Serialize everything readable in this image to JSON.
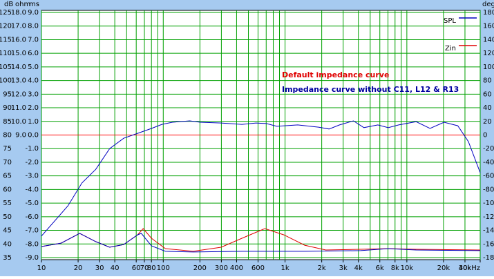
{
  "chart_data": {
    "type": "line",
    "xlabel_unit": "Hz",
    "log_x": true,
    "grid": true,
    "grid_color": "#00a000",
    "background": "#a6caf0",
    "plot_background": "#ffffff",
    "xlim": [
      10,
      40000
    ],
    "xticks": [
      10,
      20,
      30,
      40,
      60,
      70,
      80,
      100,
      200,
      300,
      400,
      600,
      {
        "value": 1000,
        "label": "1k"
      },
      {
        "value": 2000,
        "label": "2k"
      },
      {
        "value": 3000,
        "label": "3k"
      },
      {
        "value": 4000,
        "label": "4k"
      },
      {
        "value": 6000,
        "label": "6k"
      },
      {
        "value": 8000,
        "label": "8k"
      },
      {
        "value": 10000,
        "label": "10k"
      },
      {
        "value": 20000,
        "label": "20k"
      },
      {
        "value": 30000,
        "label": "30k"
      },
      {
        "value": 40000,
        "label": "40kHz"
      }
    ],
    "xgrid": [
      10,
      20,
      30,
      40,
      50,
      60,
      70,
      80,
      90,
      100,
      200,
      300,
      400,
      500,
      600,
      700,
      800,
      900,
      1000,
      2000,
      3000,
      4000,
      5000,
      6000,
      7000,
      8000,
      9000,
      10000,
      20000,
      30000,
      40000
    ],
    "y_db": {
      "title": "dB",
      "lim": [
        35,
        125
      ],
      "ticks": [
        125,
        120,
        115,
        110,
        105,
        100,
        95,
        90,
        85,
        80,
        75,
        70,
        65,
        60,
        55,
        50,
        45,
        40,
        35
      ]
    },
    "y_ohm": {
      "title": "ohm",
      "lim": [
        0,
        18
      ],
      "ticks": [
        {
          "value": 18,
          "label": "18.0"
        },
        {
          "value": 17,
          "label": "17.0"
        },
        {
          "value": 16,
          "label": "16.0"
        },
        {
          "value": 15,
          "label": "15.0"
        },
        {
          "value": 14,
          "label": "14.0"
        },
        {
          "value": 13,
          "label": "13.0"
        },
        {
          "value": 12,
          "label": "12.0"
        },
        {
          "value": 11,
          "label": "11.0"
        },
        {
          "value": 10,
          "label": "10.0"
        },
        {
          "value": 9,
          "label": "9.0"
        }
      ]
    },
    "y_ms": {
      "title": "ms",
      "lim": [
        -9,
        9
      ],
      "ticks": [
        {
          "value": 9,
          "label": "9.0"
        },
        {
          "value": 8,
          "label": "8.0"
        },
        {
          "value": 7,
          "label": "7.0"
        },
        {
          "value": 6,
          "label": "6.0"
        },
        {
          "value": 5,
          "label": "5.0"
        },
        {
          "value": 4,
          "label": "4.0"
        },
        {
          "value": 3,
          "label": "3.0"
        },
        {
          "value": 2,
          "label": "2.0"
        },
        {
          "value": 1,
          "label": "1.0"
        },
        {
          "value": 0,
          "label": "0.0"
        },
        {
          "value": -1,
          "label": "-1.0"
        },
        {
          "value": -2,
          "label": "-2.0"
        },
        {
          "value": -3,
          "label": "-3.0"
        },
        {
          "value": -4,
          "label": "-4.0"
        },
        {
          "value": -5,
          "label": "-5.0"
        },
        {
          "value": -6,
          "label": "-6.0"
        },
        {
          "value": -7,
          "label": "-7.0"
        },
        {
          "value": -8,
          "label": "-8.0"
        },
        {
          "value": -9,
          "label": "-9.0"
        }
      ]
    },
    "y_deg": {
      "title": "deg",
      "lim": [
        -180,
        180
      ],
      "ticks": [
        180,
        160,
        140,
        120,
        100,
        80,
        60,
        40,
        20,
        0,
        -20,
        -40,
        -60,
        -80,
        -100,
        -120,
        -140,
        -160,
        -180
      ]
    },
    "hline": {
      "value": 80,
      "color": "#ff0000"
    },
    "series": [
      {
        "name": "SPL",
        "color": "#0000c0",
        "axis": "y_db",
        "x": [
          10,
          16.5,
          21.5,
          27.9,
          36.3,
          47.3,
          61.5,
          80,
          97.5,
          119,
          165,
          201,
          299,
          443,
          577,
          703,
          855,
          1270,
          1880,
          2300,
          2800,
          3640,
          4440,
          5780,
          7030,
          8570,
          11900,
          15500,
          20200,
          26200,
          32000,
          40000
        ],
        "values": [
          42.9,
          54.0,
          62.4,
          67.4,
          75.0,
          78.8,
          80.6,
          82.4,
          83.9,
          84.7,
          85.2,
          84.7,
          84.4,
          83.9,
          84.4,
          84.2,
          83.2,
          83.7,
          82.9,
          82.2,
          83.7,
          85.2,
          82.7,
          83.7,
          82.7,
          83.7,
          84.9,
          82.4,
          84.7,
          83.4,
          77.6,
          66.2
        ]
      },
      {
        "name": "Zin",
        "color": "#e00000",
        "axis": "y_ohm",
        "x": [
          10,
          14.5,
          20.6,
          27.9,
          36.3,
          47.3,
          61.5,
          68.4,
          80,
          104,
          176,
          299,
          443,
          683,
          978,
          1450,
          2160,
          4170,
          7040,
          11900,
          40000
        ],
        "values": [
          0.81,
          1.06,
          1.78,
          1.17,
          0.76,
          0.96,
          1.67,
          2.13,
          1.42,
          0.66,
          0.46,
          0.76,
          1.42,
          2.13,
          1.67,
          0.91,
          0.56,
          0.61,
          0.66,
          0.61,
          0.56
        ]
      },
      {
        "color": "#0000c0",
        "axis": "y_ohm",
        "x": [
          10,
          14.5,
          20.6,
          27.9,
          36.3,
          47.3,
          61.5,
          66,
          80,
          104,
          176,
          443,
          1450,
          4170,
          7040,
          11900,
          40000
        ],
        "values": [
          0.81,
          1.06,
          1.78,
          1.17,
          0.76,
          0.96,
          1.67,
          1.78,
          0.86,
          0.46,
          0.41,
          0.46,
          0.46,
          0.51,
          0.66,
          0.56,
          0.51
        ]
      }
    ],
    "annotations": [
      {
        "text": "Default impedance curve",
        "color": "#e00000"
      },
      {
        "text": "Impedance curve without C11, L12 & R13",
        "color": "#0000a0"
      }
    ]
  }
}
